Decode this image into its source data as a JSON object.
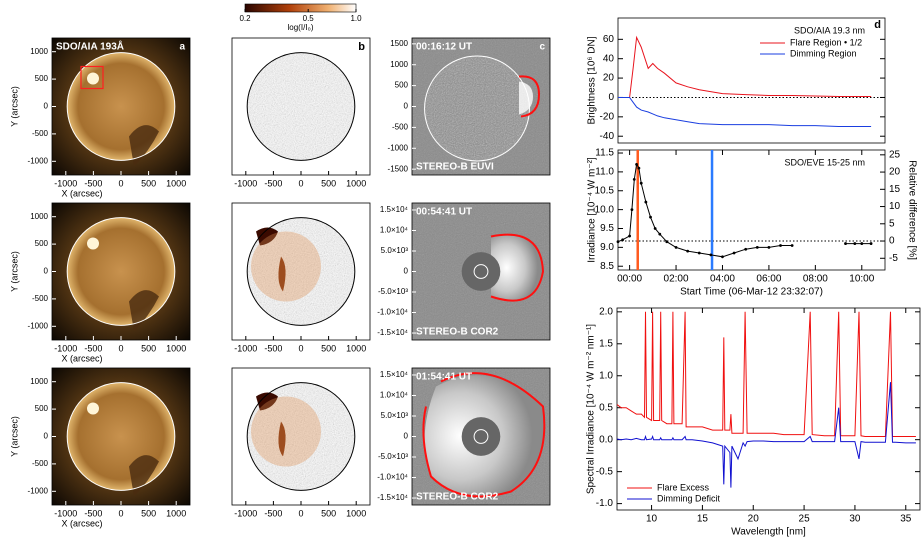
{
  "chart_data": [
    {
      "type": "image",
      "variant": "aia",
      "title": "SDO/AIA 193Å",
      "panel": "a",
      "xlim": [
        -1250,
        1250
      ],
      "ylim": [
        -1250,
        1250
      ],
      "xticks": [
        -1000,
        -500,
        0,
        500,
        1000
      ],
      "yticks": [
        -1000,
        -500,
        0,
        500,
        1000
      ],
      "xlabel": "X (arcsec)",
      "ylabel": "Y (arcsec)"
    },
    {
      "type": "image",
      "variant": "aia",
      "xlim": [
        -1250,
        1250
      ],
      "ylim": [
        -1250,
        1250
      ],
      "xticks": [
        -1000,
        -500,
        0,
        500,
        1000
      ],
      "yticks": [
        -1000,
        -500,
        0,
        500,
        1000
      ],
      "xlabel": "X (arcsec)",
      "ylabel": "Y (arcsec)"
    },
    {
      "type": "image",
      "variant": "aia",
      "xlim": [
        -1250,
        1250
      ],
      "ylim": [
        -1250,
        1250
      ],
      "xticks": [
        -1000,
        -500,
        0,
        500,
        1000
      ],
      "yticks": [
        -1000,
        -500,
        0,
        500,
        1000
      ],
      "xlabel": "X (arcsec)",
      "ylabel": "Y (arcsec)"
    },
    {
      "type": "image",
      "variant": "diff",
      "panel": "b",
      "xlim": [
        -1250,
        1250
      ],
      "ylim": [
        -1250,
        1250
      ],
      "xticks": [
        -1000,
        -500,
        0,
        500,
        1000
      ],
      "colorbar": {
        "lim": [
          0.2,
          1.0
        ],
        "log": true,
        "ticks": [
          0.2,
          0.5,
          {
            "value": 1.0,
            "label": "1.0"
          }
        ],
        "label": "log(I/I₀)"
      }
    },
    {
      "type": "image",
      "variant": "diff",
      "xlim": [
        -1250,
        1250
      ],
      "ylim": [
        -1250,
        1250
      ],
      "xticks": [
        -1000,
        -500,
        0,
        500,
        1000
      ]
    },
    {
      "type": "image",
      "variant": "diff",
      "xlim": [
        -1250,
        1250
      ],
      "ylim": [
        -1250,
        1250
      ],
      "xticks": [
        -1000,
        -500,
        0,
        500,
        1000
      ]
    },
    {
      "type": "image",
      "variant": "euvi",
      "title": "00:16:12 UT",
      "label": "STEREO-B EUVI",
      "panel": "c",
      "ylim": [
        -1640,
        1640
      ],
      "yticks": [
        -1500,
        -1000,
        -500,
        0,
        500,
        1000,
        1500
      ]
    },
    {
      "type": "image",
      "variant": "cor",
      "title": "00:54:41 UT",
      "label": "STEREO-B COR2",
      "ylim": [
        -16700,
        16700
      ],
      "yticks": [
        {
          "value": -15000,
          "label": "-1.5×10⁴"
        },
        {
          "value": -10000,
          "label": "-1.0×10⁴"
        },
        {
          "value": -5000,
          "label": "-5.0×10³"
        },
        0,
        {
          "value": 5000,
          "label": "5.0×10³"
        },
        {
          "value": 10000,
          "label": "1.0×10⁴"
        },
        {
          "value": 15000,
          "label": "1.5×10⁴"
        }
      ]
    },
    {
      "type": "image",
      "variant": "cor2",
      "title": "01:54:41 UT",
      "label": "STEREO-B COR2",
      "ylim": [
        -16700,
        16700
      ],
      "yticks": [
        {
          "value": -15000,
          "label": "-1.5×10⁴"
        },
        {
          "value": -10000,
          "label": "-1.0×10⁴"
        },
        {
          "value": -5000,
          "label": "-5.0×10³"
        },
        0,
        {
          "value": 5000,
          "label": "5.0×10³"
        },
        {
          "value": 10000,
          "label": "1.0×10⁴"
        },
        {
          "value": 15000,
          "label": "1.5×10⁴"
        }
      ]
    },
    {
      "type": "line",
      "title": "SDO/AIA 19.3 nm",
      "panel": "d",
      "ylabel": "Brightness [10⁶ DN]",
      "xlim": [
        -0.5,
        11
      ],
      "ylim": [
        -47,
        82
      ],
      "yticks": [
        -40,
        -20,
        0,
        20,
        40,
        60
      ],
      "hline": 0,
      "legend": "upper right",
      "x": [
        -0.5,
        0,
        0.15,
        0.3,
        0.5,
        0.8,
        1.0,
        1.2,
        1.5,
        2,
        2.5,
        3,
        4,
        5,
        6,
        7,
        8,
        9,
        10,
        10.4
      ],
      "series": [
        {
          "name": "Flare Region • 1/2",
          "color": "#e8141e",
          "values": [
            0,
            0,
            30,
            62,
            52,
            30,
            35,
            30,
            25,
            15,
            11,
            8,
            4,
            3,
            2,
            2,
            1.5,
            1,
            1,
            1
          ]
        },
        {
          "name": "Dimming Region",
          "color": "#1a3ee0",
          "values": [
            0,
            0,
            -5,
            -10,
            -13,
            -15,
            -17,
            -19,
            -21,
            -23,
            -25,
            -27,
            -28,
            -28,
            -28,
            -29,
            -29,
            -30,
            -30,
            -30
          ]
        }
      ]
    },
    {
      "type": "line",
      "title": "SDO/EVE 15-25 nm",
      "xlabel": "Start Time (06-Mar-12 23:32:07)",
      "ylabel": "Irradiance [10⁻⁴ W m⁻²]",
      "y2label": "Relative difference [%]",
      "xlim": [
        -0.5,
        11
      ],
      "ylim": [
        8.4,
        11.58
      ],
      "y2lim": [
        -8.4,
        26.4
      ],
      "xticks": [
        {
          "value": 0,
          "label": "00:00"
        },
        {
          "value": 2,
          "label": "02:00"
        },
        {
          "value": 4,
          "label": "04:00"
        },
        {
          "value": 6,
          "label": "06:00"
        },
        {
          "value": 8,
          "label": "08:00"
        },
        {
          "value": 10,
          "label": "10:00"
        }
      ],
      "yticks": [
        {
          "value": 8.5,
          "label": "8.5"
        },
        {
          "value": 9.0,
          "label": "9.0"
        },
        9.5,
        {
          "value": 10.0,
          "label": "10.0"
        },
        10.5,
        {
          "value": 11.0,
          "label": "11.0"
        },
        11.5
      ],
      "y2ticks": [
        -5,
        0,
        5,
        10,
        15,
        20,
        25
      ],
      "hline_y2": 0,
      "vlines": [
        {
          "x": 0.35,
          "color": "#ff5a1e"
        },
        {
          "x": 3.55,
          "color": "#2a7bff"
        }
      ],
      "x": [
        -0.5,
        -0.3,
        0,
        0.1,
        0.2,
        0.3,
        0.4,
        0.5,
        0.7,
        0.9,
        1.1,
        1.3,
        1.6,
        2,
        2.5,
        3,
        3.5,
        4,
        4.5,
        5,
        5.5,
        6,
        6.5,
        7,
        7.5,
        9.3,
        9.7,
        10,
        10.4
      ],
      "series": [
        {
          "color": "#000000",
          "marker": "circle",
          "values": [
            9.15,
            9.2,
            9.3,
            10.0,
            10.8,
            11.2,
            11.1,
            10.7,
            10.2,
            9.8,
            9.5,
            9.35,
            9.15,
            9.0,
            8.9,
            8.85,
            8.8,
            8.75,
            8.85,
            8.95,
            9.0,
            9.0,
            9.05,
            9.05,
            null,
            9.1,
            9.1,
            9.1,
            9.1
          ]
        }
      ]
    },
    {
      "type": "line",
      "xlabel": "Wavelength [nm]",
      "ylabel": "Spectral Irradiance [10⁻⁴ W m⁻² nm⁻¹]",
      "xlim": [
        6.6,
        36.4
      ],
      "ylim": [
        -1.1,
        2.06
      ],
      "legend": "lower left",
      "xticks": [
        10,
        15,
        20,
        25,
        30,
        35
      ],
      "yticks": [
        {
          "value": -1.0,
          "label": "-1.0"
        },
        -0.5,
        {
          "value": 0.0,
          "label": "0.0"
        },
        0.5,
        {
          "value": 1.0,
          "label": "1.0"
        },
        1.5,
        {
          "value": 2.0,
          "label": "2.0"
        }
      ],
      "x": [
        6.6,
        7,
        7.5,
        8,
        8.5,
        9,
        9.3,
        9.4,
        9.5,
        10,
        10.1,
        10.2,
        10.5,
        10.8,
        10.9,
        11,
        11.5,
        12,
        12.1,
        12.2,
        12.5,
        13,
        13.3,
        13.4,
        14,
        15,
        16,
        17,
        17.1,
        17.2,
        17.7,
        17.8,
        17.9,
        18.5,
        19,
        19.2,
        19.4,
        20,
        21,
        22,
        23,
        24,
        25,
        25.6,
        25.8,
        27,
        28,
        28.4,
        28.6,
        29,
        30,
        30.4,
        30.6,
        31,
        32,
        33,
        33.5,
        33.7,
        34,
        35,
        36
      ],
      "series": [
        {
          "name": "Flare Excess",
          "color": "#f01010",
          "values": [
            0.55,
            0.5,
            0.5,
            0.45,
            0.4,
            0.4,
            0.35,
            2.0,
            0.35,
            0.3,
            2.0,
            0.3,
            0.3,
            0.3,
            2.0,
            0.3,
            0.25,
            0.25,
            2.0,
            0.25,
            0.25,
            0.25,
            2.0,
            0.2,
            0.2,
            0.2,
            0.15,
            0.15,
            1.6,
            0.15,
            0.15,
            0.4,
            0.1,
            0.1,
            0.1,
            2.0,
            0.1,
            0.1,
            0.1,
            0.1,
            0.08,
            0.08,
            0.08,
            2.0,
            0.08,
            0.06,
            0.06,
            2.0,
            0.06,
            0.06,
            0.06,
            2.0,
            0.06,
            0.05,
            0.05,
            0.05,
            2.0,
            0.05,
            0.05,
            0.05,
            0.05
          ]
        },
        {
          "name": "Dimming Deficit",
          "color": "#1010d0",
          "values": [
            0.01,
            0,
            0.01,
            0,
            0.02,
            0,
            0,
            0.05,
            0,
            0.01,
            0.05,
            0,
            0,
            0,
            0.03,
            0,
            0,
            0,
            0.03,
            0,
            0,
            0,
            0.05,
            0,
            0,
            -0.02,
            -0.05,
            -0.1,
            -0.7,
            -0.1,
            -0.2,
            -0.75,
            -0.1,
            -0.3,
            -0.05,
            -0.1,
            -0.03,
            -0.02,
            -0.02,
            -0.03,
            -0.03,
            -0.03,
            -0.03,
            0.05,
            -0.03,
            -0.03,
            -0.03,
            0.5,
            -0.03,
            -0.03,
            -0.03,
            -0.3,
            -0.03,
            -0.04,
            -0.04,
            -0.04,
            0.9,
            -0.04,
            -0.04,
            -0.05,
            -0.05
          ]
        }
      ]
    }
  ]
}
